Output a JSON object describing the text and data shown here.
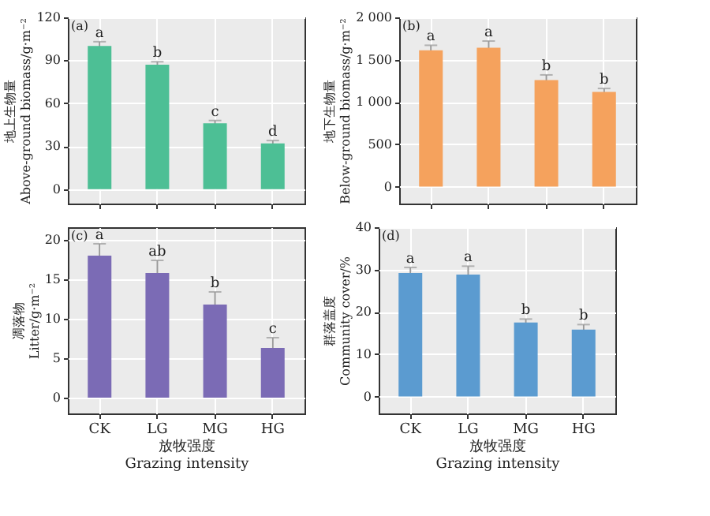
{
  "chart_data": [
    {
      "type": "bar",
      "categories": [
        "CK",
        "LG",
        "MG",
        "HG"
      ],
      "ylabel": "地上生物量\nAbove-ground biomass/g·m⁻²",
      "values": [
        100,
        87,
        46,
        32
      ],
      "errors": [
        3,
        2,
        2,
        2
      ],
      "color": "#4dbf95",
      "ylim": [
        -10,
        120
      ],
      "yticks": [
        0,
        30,
        60,
        90,
        120
      ],
      "grid": true,
      "tick_labels": "y",
      "annotations": [
        "(a)",
        {
          "text": "a",
          "x": "CK",
          "y": 103
        },
        {
          "text": "b",
          "x": "LG",
          "y": 89
        },
        {
          "text": "c",
          "x": "MG",
          "y": 48
        },
        {
          "text": "d",
          "x": "HG",
          "y": 34
        }
      ]
    },
    {
      "type": "bar",
      "categories": [
        "CK",
        "LG",
        "MG",
        "HG"
      ],
      "ylabel": "地下生物量\nBelow-ground biomass/g·m⁻²",
      "values": [
        1610,
        1640,
        1260,
        1120
      ],
      "errors": [
        60,
        80,
        60,
        40
      ],
      "color": "#f5a25d",
      "ylim": [
        -200,
        2000
      ],
      "yticks": [
        0,
        500,
        {
          "value": 1000,
          "label": "1 000"
        },
        {
          "value": 1500,
          "label": "1 500"
        },
        {
          "value": 2000,
          "label": "2 000"
        }
      ],
      "grid": true,
      "tick_labels": "y",
      "annotations": [
        "(b)",
        "a",
        "a",
        "b",
        "b"
      ]
    },
    {
      "type": "bar",
      "categories": [
        "CK",
        "LG",
        "MG",
        "HG"
      ],
      "xlabel": "放牧强度\nGrazing intensity",
      "ylabel": "凋落物\nLitter/g·m⁻²",
      "values": [
        18,
        15.8,
        11.8,
        6.3
      ],
      "errors": [
        1.5,
        1.6,
        1.6,
        1.3
      ],
      "color": "#7b6bb5",
      "ylim": [
        -2,
        21.6
      ],
      "yticks": [
        0,
        5,
        10,
        15,
        20
      ],
      "grid": true,
      "annotations": [
        "(c)",
        {
          "text": "a",
          "x": "CK",
          "y": 19.5
        },
        {
          "text": "ab",
          "x": "LG",
          "y": 17.4
        },
        {
          "text": "b",
          "x": "MG",
          "y": 13.4
        },
        {
          "text": "c",
          "x": "HG",
          "y": 7.6
        }
      ]
    },
    {
      "type": "bar",
      "categories": [
        "CK",
        "LG",
        "MG",
        "HG"
      ],
      "xlabel": "放牧强度\nGrazing intensity",
      "ylabel": "群落盖度\nCommunity cover/%",
      "values": [
        29.2,
        28.8,
        17.5,
        15.8
      ],
      "errors": [
        1.3,
        2,
        0.8,
        1.2
      ],
      "color": "#5b9bd0",
      "ylim": [
        -4,
        40
      ],
      "yticks": [
        0,
        10,
        20,
        30,
        40
      ],
      "grid": true,
      "annotations": [
        "(d)",
        {
          "text": "a",
          "x": "CK",
          "y": 30.5
        },
        {
          "text": "a",
          "x": "LG",
          "y": 30.8
        },
        {
          "text": "b",
          "x": "MG",
          "y": 18.3
        },
        {
          "text": "b",
          "x": "HG",
          "y": 17
        }
      ]
    }
  ]
}
